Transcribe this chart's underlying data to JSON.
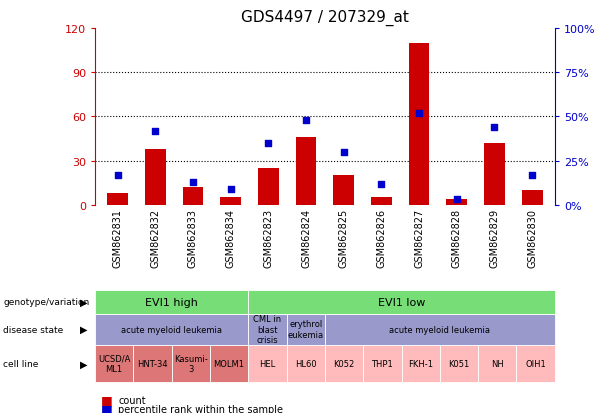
{
  "title": "GDS4497 / 207329_at",
  "samples": [
    "GSM862831",
    "GSM862832",
    "GSM862833",
    "GSM862834",
    "GSM862823",
    "GSM862824",
    "GSM862825",
    "GSM862826",
    "GSM862827",
    "GSM862828",
    "GSM862829",
    "GSM862830"
  ],
  "counts": [
    8,
    38,
    12,
    5,
    25,
    46,
    20,
    5,
    110,
    4,
    42,
    10
  ],
  "percentiles": [
    17,
    42,
    13,
    9,
    35,
    48,
    30,
    12,
    52,
    3,
    44,
    17
  ],
  "ylim_left": [
    0,
    120
  ],
  "ylim_right": [
    0,
    100
  ],
  "yticks_left": [
    0,
    30,
    60,
    90,
    120
  ],
  "ytick_labels_left": [
    "0",
    "30",
    "60",
    "90",
    "120"
  ],
  "yticks_right": [
    0,
    25,
    50,
    75,
    100
  ],
  "ytick_labels_right": [
    "0%",
    "25%",
    "50%",
    "75%",
    "100%"
  ],
  "bar_color": "#cc0000",
  "dot_color": "#0000cc",
  "bg_color": "#ffffff",
  "genotype_groups": [
    {
      "label": "EVI1 high",
      "start": 0,
      "end": 4,
      "color": "#77dd77"
    },
    {
      "label": "EVI1 low",
      "start": 4,
      "end": 12,
      "color": "#77dd77"
    }
  ],
  "disease_groups": [
    {
      "label": "acute myeloid leukemia",
      "start": 0,
      "end": 4,
      "color": "#9999cc"
    },
    {
      "label": "CML in\nblast\ncrisis",
      "start": 4,
      "end": 5,
      "color": "#9999cc"
    },
    {
      "label": "erythrol\neukemia",
      "start": 5,
      "end": 6,
      "color": "#9999cc"
    },
    {
      "label": "acute myeloid leukemia",
      "start": 6,
      "end": 12,
      "color": "#9999cc"
    }
  ],
  "cell_lines": [
    {
      "label": "UCSD/A\nML1",
      "start": 0,
      "end": 1,
      "color": "#dd7777"
    },
    {
      "label": "HNT-34",
      "start": 1,
      "end": 2,
      "color": "#dd7777"
    },
    {
      "label": "Kasumi-\n3",
      "start": 2,
      "end": 3,
      "color": "#dd7777"
    },
    {
      "label": "MOLM1",
      "start": 3,
      "end": 4,
      "color": "#dd7777"
    },
    {
      "label": "HEL",
      "start": 4,
      "end": 5,
      "color": "#ffbbbb"
    },
    {
      "label": "HL60",
      "start": 5,
      "end": 6,
      "color": "#ffbbbb"
    },
    {
      "label": "K052",
      "start": 6,
      "end": 7,
      "color": "#ffbbbb"
    },
    {
      "label": "THP1",
      "start": 7,
      "end": 8,
      "color": "#ffbbbb"
    },
    {
      "label": "FKH-1",
      "start": 8,
      "end": 9,
      "color": "#ffbbbb"
    },
    {
      "label": "K051",
      "start": 9,
      "end": 10,
      "color": "#ffbbbb"
    },
    {
      "label": "NH",
      "start": 10,
      "end": 11,
      "color": "#ffbbbb"
    },
    {
      "label": "OIH1",
      "start": 11,
      "end": 12,
      "color": "#ffbbbb"
    }
  ]
}
